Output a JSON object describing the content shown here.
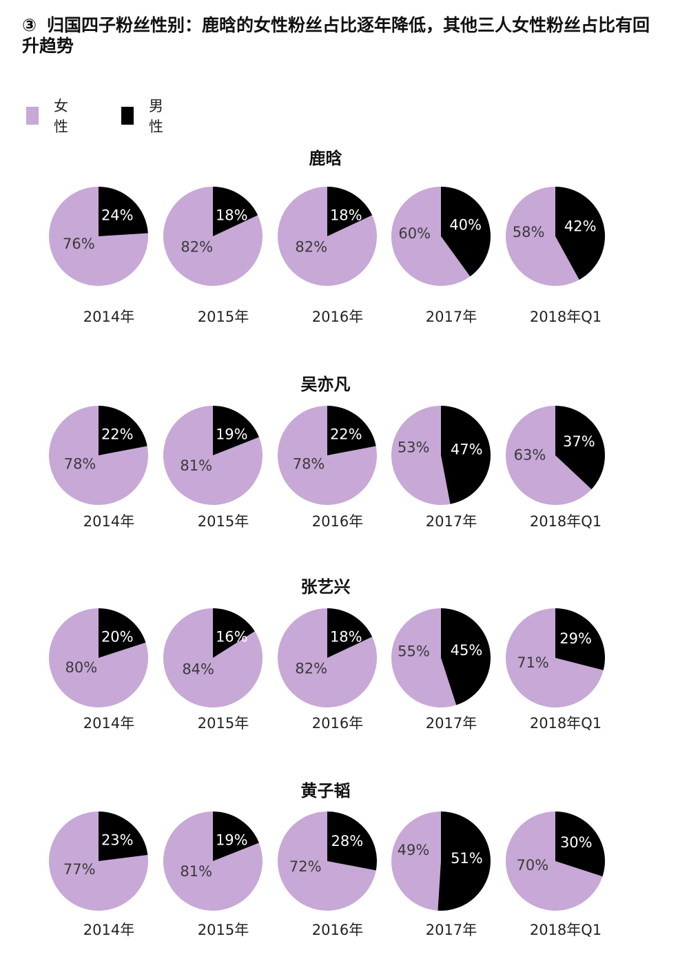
{
  "title": {
    "number": "③",
    "text": "归国四子粉丝性别：鹿晗的女性粉丝占比逐年降低，其他三人女性粉丝占比有回升趋势"
  },
  "colors": {
    "female": "#c7a8d6",
    "male": "#000000"
  },
  "legend": [
    {
      "label": "女性",
      "color": "#c7a8d6"
    },
    {
      "label": "男性",
      "color": "#000000"
    }
  ],
  "chart_data": {
    "type": "pie",
    "categories": [
      "女性",
      "男性"
    ],
    "periods": [
      "2014年",
      "2015年",
      "2016年",
      "2017年",
      "2018年Q1"
    ],
    "groups": [
      {
        "name": "鹿晗",
        "labels": [
          "2014年",
          "2015年",
          "2016年",
          "2017年",
          "2018年Q1"
        ],
        "female": [
          76,
          82,
          82,
          60,
          58
        ],
        "male": [
          24,
          18,
          18,
          40,
          42
        ]
      },
      {
        "name": "吴亦凡",
        "labels": [
          "2014年",
          "2015年",
          "2016年",
          "2017年",
          "2018年Q1"
        ],
        "female": [
          78,
          81,
          78,
          53,
          63
        ],
        "male": [
          22,
          19,
          22,
          47,
          37
        ]
      },
      {
        "name": "张艺兴",
        "labels": [
          "2014年",
          "2015年",
          "2016年",
          "2017年",
          "2018年Q1"
        ],
        "female": [
          80,
          84,
          82,
          55,
          71
        ],
        "male": [
          20,
          16,
          18,
          45,
          29
        ]
      },
      {
        "name": "黄子韬",
        "labels": [
          "2014年",
          "2015年",
          "2016年",
          "2017年",
          "2018年Q1"
        ],
        "female": [
          77,
          81,
          72,
          49,
          70
        ],
        "male": [
          23,
          19,
          28,
          51,
          30
        ]
      }
    ]
  }
}
